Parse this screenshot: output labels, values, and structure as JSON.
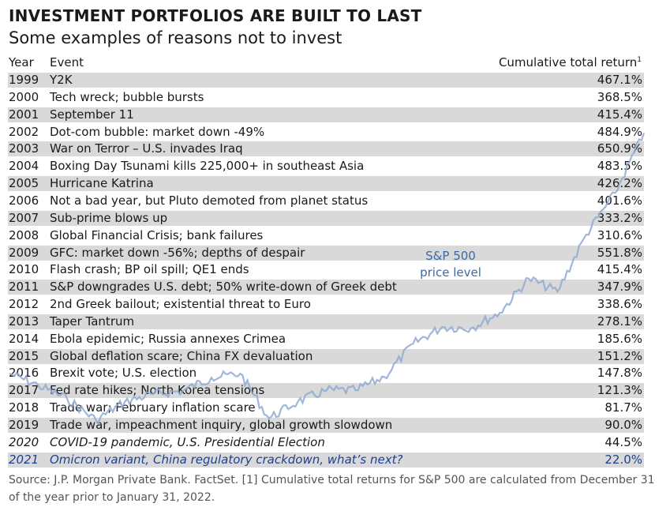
{
  "title": "INVESTMENT PORTFOLIOS ARE BUILT TO LAST",
  "subtitle": "Some examples of reasons not to invest",
  "headers": {
    "year": "Year",
    "event": "Event",
    "return": "Cumulative total return",
    "return_footnote": "1"
  },
  "chart_data": {
    "type": "table",
    "columns": [
      "Year",
      "Event",
      "Cumulative total return"
    ],
    "rows": [
      {
        "year": "1999",
        "event": "Y2K",
        "return": "467.1%"
      },
      {
        "year": "2000",
        "event": "Tech wreck; bubble bursts",
        "return": "368.5%"
      },
      {
        "year": "2001",
        "event": "September 11",
        "return": "415.4%"
      },
      {
        "year": "2002",
        "event": "Dot-com bubble: market down -49%",
        "return": "484.9%"
      },
      {
        "year": "2003",
        "event": "War on Terror – U.S. invades Iraq",
        "return": "650.9%"
      },
      {
        "year": "2004",
        "event": "Boxing Day Tsunami kills 225,000+ in southeast Asia",
        "return": "483.5%"
      },
      {
        "year": "2005",
        "event": "Hurricane Katrina",
        "return": "426.2%"
      },
      {
        "year": "2006",
        "event": "Not a bad year, but Pluto demoted from planet status",
        "return": "401.6%"
      },
      {
        "year": "2007",
        "event": "Sub-prime blows up",
        "return": "333.2%"
      },
      {
        "year": "2008",
        "event": "Global Financial Crisis; bank failures",
        "return": "310.6%"
      },
      {
        "year": "2009",
        "event": "GFC: market down -56%; depths of despair",
        "return": "551.8%"
      },
      {
        "year": "2010",
        "event": "Flash crash; BP oil spill; QE1 ends",
        "return": "415.4%"
      },
      {
        "year": "2011",
        "event": "S&P downgrades U.S. debt; 50% write-down of Greek debt",
        "return": "347.9%"
      },
      {
        "year": "2012",
        "event": "2nd Greek bailout; existential threat to Euro",
        "return": "338.6%"
      },
      {
        "year": "2013",
        "event": "Taper Tantrum",
        "return": "278.1%"
      },
      {
        "year": "2014",
        "event": "Ebola epidemic; Russia annexes Crimea",
        "return": "185.6%"
      },
      {
        "year": "2015",
        "event": "Global deflation scare; China FX devaluation",
        "return": "151.2%"
      },
      {
        "year": "2016",
        "event": "Brexit vote; U.S. election",
        "return": "147.8%"
      },
      {
        "year": "2017",
        "event": "Fed rate hikes; North Korea tensions",
        "return": "121.3%"
      },
      {
        "year": "2018",
        "event": "Trade war; February inflation scare",
        "return": "81.7%"
      },
      {
        "year": "2019",
        "event": "Trade war, impeachment inquiry, global growth slowdown",
        "return": "90.0%"
      },
      {
        "year": "2020",
        "event": "COVID-19 pandemic, U.S. Presidential Election",
        "return": "44.5%",
        "style": "italic"
      },
      {
        "year": "2021",
        "event": "Omicron variant, China regulatory crackdown, what’s next?",
        "return": "22.0%",
        "style": "future"
      }
    ],
    "overlay_series": {
      "name_line1": "S&P 500",
      "name_line2": "price level",
      "color": "#8faad0",
      "values": [
        1469,
        1320,
        1148,
        880,
        1112,
        1212,
        1248,
        1418,
        1468,
        903,
        1115,
        1258,
        1258,
        1426,
        1848,
        2059,
        2044,
        2239,
        2674,
        2507,
        3231,
        3756,
        4516
      ]
    }
  },
  "colors": {
    "shade": "#d9d9d9",
    "future_text": "#1f3f8f",
    "overlay_line": "#8faad0",
    "overlay_label": "#3a6aa8"
  },
  "source": "Source: J.P. Morgan Private Bank. FactSet. [1] Cumulative total returns for S&P 500 are calculated from December 31 of the year prior to January 31, 2022."
}
